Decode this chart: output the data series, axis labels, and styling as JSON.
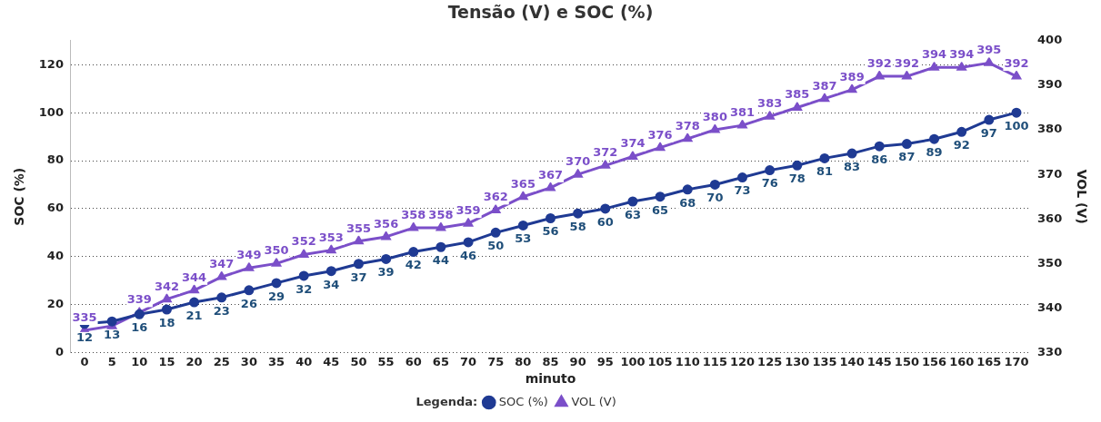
{
  "chart_data": {
    "type": "line",
    "title": "Tensão (V) e SOC (%)",
    "xlabel": "minuto",
    "ylabel": "SOC (%)",
    "y2label": "VOL (V)",
    "legend_title": "Legenda:",
    "legend": "bottom",
    "grid": "y",
    "line_style": "solid",
    "categories": [
      "0",
      "5",
      "10",
      "15",
      "20",
      "25",
      "30",
      "35",
      "40",
      "45",
      "50",
      "55",
      "60",
      "65",
      "70",
      "75",
      "80",
      "85",
      "90",
      "95",
      "100",
      "105",
      "110",
      "115",
      "120",
      "125",
      "130",
      "135",
      "140",
      "145",
      "150",
      "156",
      "160",
      "165",
      "170"
    ],
    "ylim": [
      0,
      130
    ],
    "yticks": [
      0,
      20,
      40,
      60,
      80,
      100,
      120
    ],
    "y2lim": [
      330,
      400
    ],
    "y2ticks": [
      330,
      340,
      350,
      360,
      370,
      380,
      390,
      400
    ],
    "series": [
      {
        "name": "SOC (%)",
        "color": "#1f3a93",
        "marker": "circle",
        "values": [
          12,
          13,
          16,
          18,
          21,
          23,
          26,
          29,
          32,
          34,
          37,
          39,
          42,
          44,
          46,
          50,
          53,
          56,
          58,
          60,
          63,
          65,
          68,
          70,
          73,
          76,
          78,
          81,
          83,
          86,
          87,
          89,
          92,
          97,
          100
        ],
        "value_labels": [
          "12",
          "13",
          "16",
          "18",
          "21",
          "23",
          "26",
          "29",
          "32",
          "34",
          "37",
          "39",
          "42",
          "44",
          "46",
          "50",
          "53",
          "56",
          "58",
          "60",
          "63",
          "65",
          "68",
          "70",
          "73",
          "76",
          "78",
          "81",
          "83",
          "86",
          "87",
          "89",
          "92",
          "97",
          "100"
        ]
      },
      {
        "name": "VOL (V)",
        "color": "#7b4fc9",
        "marker": "triangle",
        "axis": "y2",
        "values": [
          335,
          336,
          339,
          342,
          344,
          347,
          349,
          350,
          352,
          353,
          355,
          356,
          358,
          358,
          359,
          362,
          365,
          367,
          370,
          372,
          374,
          376,
          378,
          380,
          381,
          383,
          385,
          387,
          389,
          392,
          392,
          394,
          394,
          395,
          392
        ],
        "value_labels": [
          "335",
          null,
          "339",
          "342",
          "344",
          "347",
          "349",
          "350",
          "352",
          "353",
          "355",
          "356",
          "358",
          "358",
          "359",
          "362",
          "365",
          "367",
          "370",
          "372",
          "374",
          "376",
          "378",
          "380",
          "381",
          "383",
          "385",
          "387",
          "389",
          "392",
          "392",
          "394",
          "394",
          "395",
          "392"
        ]
      }
    ]
  }
}
